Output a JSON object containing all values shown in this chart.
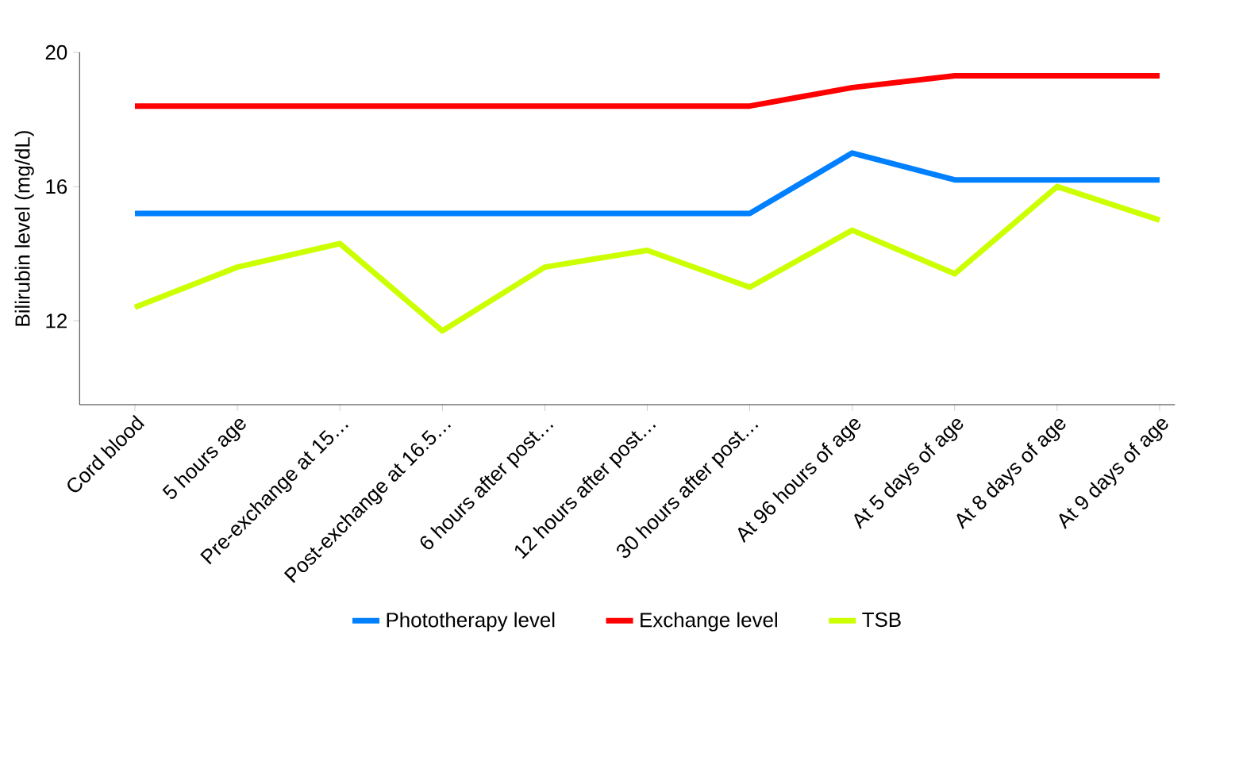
{
  "chart_data": {
    "type": "line",
    "ylabel": "Bilirubin level (mg/dL)",
    "categories": [
      "Cord blood",
      "5 hours age",
      "Pre-exchange at 15…",
      "Post-exchange at 16.5…",
      "6 hours after post…",
      "12 hours after post…",
      "30 hours after post…",
      "At 96 hours of age",
      "At 5 days of age",
      "At 8 days of age",
      "At 9 days of age"
    ],
    "series": [
      {
        "name": "Phototherapy level",
        "color": "#0080ff",
        "values": [
          15.2,
          15.2,
          15.2,
          15.2,
          15.2,
          15.2,
          15.2,
          17.0,
          16.2,
          16.2,
          16.2
        ]
      },
      {
        "name": "Exchange level",
        "color": "#ff0000",
        "values": [
          18.4,
          18.4,
          18.4,
          18.4,
          18.4,
          18.4,
          18.4,
          18.95,
          19.3,
          19.3,
          19.3
        ]
      },
      {
        "name": "TSB",
        "color": "#ccff00",
        "values": [
          12.4,
          13.6,
          14.3,
          11.7,
          13.6,
          14.1,
          13.0,
          14.7,
          13.4,
          16.0,
          15.0
        ]
      }
    ],
    "ylim": [
      9.5,
      20
    ],
    "yticks": [
      12,
      16,
      20
    ],
    "grid": false,
    "legend": "bottom",
    "marker": "none",
    "line_style": "solid"
  }
}
